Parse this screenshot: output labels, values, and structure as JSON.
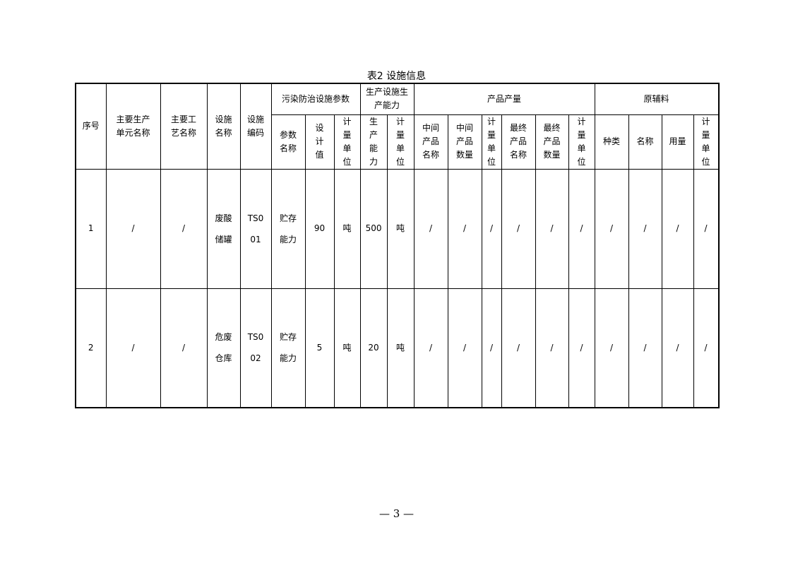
{
  "title": "表2 设施信息",
  "headers": {
    "seq": "序号",
    "unit": "主要生产单元名称",
    "process": "主要工艺名称",
    "facility_name": "设施名称",
    "facility_code": "设施编码",
    "pollution_params": "污染防治设施参数",
    "capacity": "生产设施生产能力",
    "product_output": "产品产量",
    "raw_materials": "原辅料",
    "param_name": "参数名称",
    "design_value": "设计值",
    "unit_measure": "计量单位",
    "prod_capacity": "生产能力",
    "intermediate_name": "中间产品名称",
    "intermediate_qty": "中间产品数量",
    "final_name": "最终产品名称",
    "final_qty": "最终产品数量",
    "kind": "种类",
    "name": "名称",
    "usage": "用量"
  },
  "rows": [
    {
      "seq": "1",
      "unit": "/",
      "process": "/",
      "facility_name": "废酸储罐",
      "facility_code": "TS001",
      "param_name": "贮存能力",
      "design_value": "90",
      "param_unit": "吨",
      "capacity": "500",
      "capacity_unit": "吨",
      "c1": "/",
      "c2": "/",
      "c3": "/",
      "c4": "/",
      "c5": "/",
      "c6": "/",
      "c7": "/",
      "c8": "/",
      "c9": "/",
      "c10": "/"
    },
    {
      "seq": "2",
      "unit": "/",
      "process": "/",
      "facility_name": "危废仓库",
      "facility_code": "TS002",
      "param_name": "贮存能力",
      "design_value": "5",
      "param_unit": "吨",
      "capacity": "20",
      "capacity_unit": "吨",
      "c1": "/",
      "c2": "/",
      "c3": "/",
      "c4": "/",
      "c5": "/",
      "c6": "/",
      "c7": "/",
      "c8": "/",
      "c9": "/",
      "c10": "/"
    }
  ],
  "page_number": "— 3 —"
}
